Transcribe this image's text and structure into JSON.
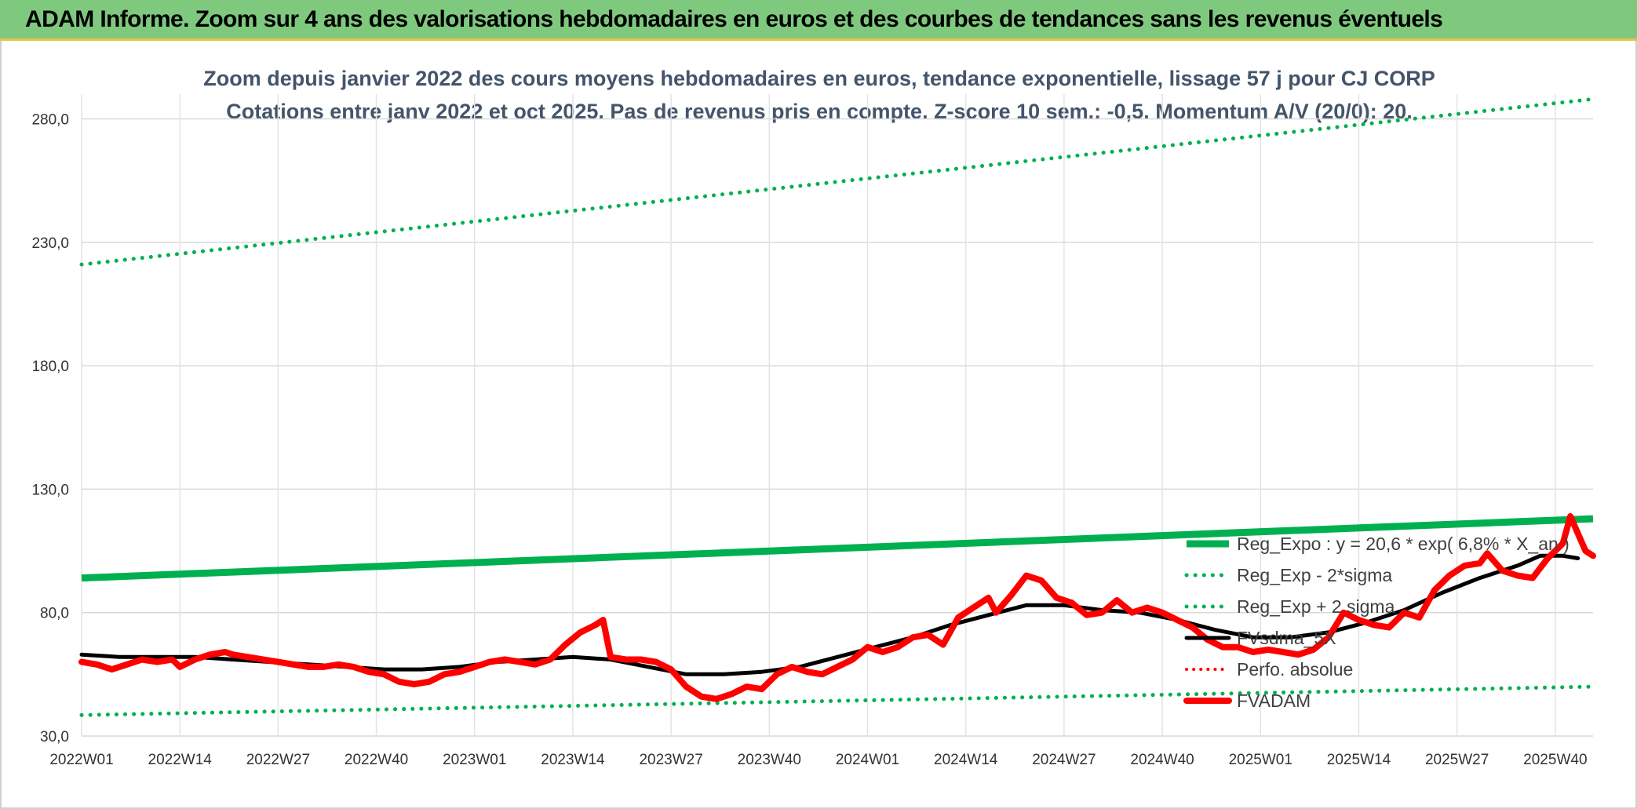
{
  "header": {
    "title": "ADAM Informe. Zoom sur 4 ans des valorisations hebdomadaires en euros et des courbes de tendances sans les revenus éventuels"
  },
  "colors": {
    "header_bg": "#7fc97f",
    "trend": "#00b050",
    "price": "#ff0000",
    "smooth": "#000000",
    "perf": "#ff0000"
  },
  "chart_data": {
    "type": "line",
    "title": "Zoom depuis janvier 2022 des cours moyens hebdomadaires en euros, tendance exponentielle, lissage 57 j pour CJ CORP",
    "subtitle": "Cotations entre janv 2022 et oct 2025. Pas de revenus pris en compte. Z-score 10 sem.: -0,5. Momentum A/V (20/0): 20.",
    "ylim": [
      30,
      290
    ],
    "yticks": [
      "30,0",
      "80,0",
      "130,0",
      "180,0",
      "230,0",
      "280,0"
    ],
    "ytick_values": [
      30,
      80,
      130,
      180,
      230,
      280
    ],
    "xticks": [
      "2022W01",
      "2022W14",
      "2022W27",
      "2022W40",
      "2023W01",
      "2023W14",
      "2023W27",
      "2023W40",
      "2024W01",
      "2024W14",
      "2024W27",
      "2024W40",
      "2025W01",
      "2025W14",
      "2025W27",
      "2025W40"
    ],
    "xtick_weeks": [
      0,
      13,
      26,
      39,
      52,
      65,
      78,
      91,
      104,
      117,
      130,
      143,
      156,
      169,
      182,
      195
    ],
    "x_range_weeks": [
      0,
      200
    ],
    "grid": true,
    "legend_position": "right-middle",
    "series": [
      {
        "name": "Reg_Expo : y = 20,6 * exp( 6,8% * X_an )",
        "style": "solid-green-thick",
        "points": [
          [
            0,
            94
          ],
          [
            200,
            118
          ]
        ]
      },
      {
        "name": "Reg_Exp - 2*sigma",
        "style": "dotted-green",
        "points": [
          [
            0,
            38.5
          ],
          [
            200,
            50
          ]
        ]
      },
      {
        "name": "Reg_Exp + 2 sigma",
        "style": "dotted-green",
        "points": [
          [
            0,
            221
          ],
          [
            200,
            288
          ]
        ]
      },
      {
        "name": "FVsdma_5X",
        "style": "solid-black",
        "points": [
          [
            0,
            63
          ],
          [
            5,
            62
          ],
          [
            10,
            62
          ],
          [
            15,
            62
          ],
          [
            20,
            61
          ],
          [
            25,
            60
          ],
          [
            30,
            59
          ],
          [
            35,
            58
          ],
          [
            40,
            57
          ],
          [
            45,
            57
          ],
          [
            50,
            58
          ],
          [
            55,
            60
          ],
          [
            60,
            61
          ],
          [
            65,
            62
          ],
          [
            70,
            61
          ],
          [
            75,
            58
          ],
          [
            80,
            55
          ],
          [
            85,
            55
          ],
          [
            90,
            56
          ],
          [
            95,
            58
          ],
          [
            100,
            62
          ],
          [
            105,
            66
          ],
          [
            110,
            70
          ],
          [
            115,
            75
          ],
          [
            120,
            79
          ],
          [
            125,
            83
          ],
          [
            130,
            83
          ],
          [
            135,
            81
          ],
          [
            140,
            80
          ],
          [
            145,
            77
          ],
          [
            150,
            73
          ],
          [
            155,
            70
          ],
          [
            160,
            70
          ],
          [
            165,
            72
          ],
          [
            170,
            76
          ],
          [
            175,
            81
          ],
          [
            180,
            88
          ],
          [
            185,
            94
          ],
          [
            190,
            99
          ],
          [
            193,
            103
          ],
          [
            196,
            103
          ],
          [
            198,
            102
          ]
        ]
      },
      {
        "name": "Perfo. absolue",
        "style": "dotted-red",
        "points": []
      },
      {
        "name": "FVADAM",
        "style": "solid-red-thick",
        "points": [
          [
            0,
            60
          ],
          [
            2,
            59
          ],
          [
            4,
            57
          ],
          [
            6,
            59
          ],
          [
            8,
            61
          ],
          [
            10,
            60
          ],
          [
            12,
            61
          ],
          [
            13,
            58
          ],
          [
            15,
            61
          ],
          [
            17,
            63
          ],
          [
            19,
            64
          ],
          [
            20,
            63
          ],
          [
            22,
            62
          ],
          [
            24,
            61
          ],
          [
            26,
            60
          ],
          [
            28,
            59
          ],
          [
            30,
            58
          ],
          [
            32,
            58
          ],
          [
            34,
            59
          ],
          [
            36,
            58
          ],
          [
            38,
            56
          ],
          [
            40,
            55
          ],
          [
            42,
            52
          ],
          [
            44,
            51
          ],
          [
            46,
            52
          ],
          [
            48,
            55
          ],
          [
            50,
            56
          ],
          [
            52,
            58
          ],
          [
            54,
            60
          ],
          [
            56,
            61
          ],
          [
            58,
            60
          ],
          [
            60,
            59
          ],
          [
            62,
            61
          ],
          [
            64,
            67
          ],
          [
            66,
            72
          ],
          [
            68,
            75
          ],
          [
            69,
            77
          ],
          [
            70,
            62
          ],
          [
            72,
            61
          ],
          [
            74,
            61
          ],
          [
            76,
            60
          ],
          [
            78,
            57
          ],
          [
            80,
            50
          ],
          [
            82,
            46
          ],
          [
            84,
            45
          ],
          [
            86,
            47
          ],
          [
            88,
            50
          ],
          [
            90,
            49
          ],
          [
            92,
            55
          ],
          [
            94,
            58
          ],
          [
            96,
            56
          ],
          [
            98,
            55
          ],
          [
            100,
            58
          ],
          [
            102,
            61
          ],
          [
            104,
            66
          ],
          [
            106,
            64
          ],
          [
            108,
            66
          ],
          [
            110,
            70
          ],
          [
            112,
            71
          ],
          [
            114,
            67
          ],
          [
            116,
            78
          ],
          [
            118,
            82
          ],
          [
            120,
            86
          ],
          [
            121,
            80
          ],
          [
            123,
            87
          ],
          [
            125,
            95
          ],
          [
            127,
            93
          ],
          [
            129,
            86
          ],
          [
            131,
            84
          ],
          [
            133,
            79
          ],
          [
            135,
            80
          ],
          [
            137,
            85
          ],
          [
            139,
            80
          ],
          [
            141,
            82
          ],
          [
            143,
            80
          ],
          [
            145,
            77
          ],
          [
            147,
            74
          ],
          [
            149,
            69
          ],
          [
            151,
            66
          ],
          [
            153,
            66
          ],
          [
            155,
            64
          ],
          [
            157,
            65
          ],
          [
            159,
            64
          ],
          [
            161,
            63
          ],
          [
            163,
            65
          ],
          [
            165,
            70
          ],
          [
            167,
            80
          ],
          [
            169,
            77
          ],
          [
            171,
            75
          ],
          [
            173,
            74
          ],
          [
            175,
            80
          ],
          [
            177,
            78
          ],
          [
            179,
            89
          ],
          [
            181,
            95
          ],
          [
            183,
            99
          ],
          [
            185,
            100
          ],
          [
            186,
            104
          ],
          [
            188,
            97
          ],
          [
            190,
            95
          ],
          [
            192,
            94
          ],
          [
            194,
            102
          ],
          [
            196,
            108
          ],
          [
            197,
            119
          ],
          [
            199,
            105
          ],
          [
            200,
            103
          ]
        ]
      }
    ]
  }
}
